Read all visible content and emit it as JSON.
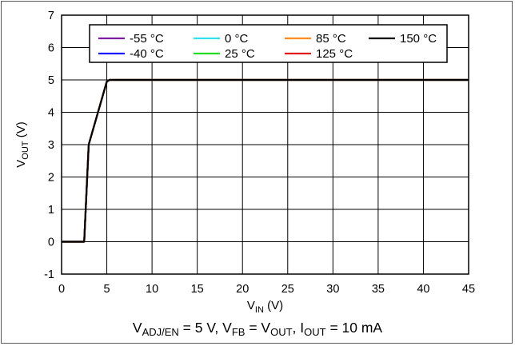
{
  "chart_data": {
    "type": "line",
    "xlabel": {
      "main": "V",
      "sub": "IN",
      "unit": " (V)"
    },
    "ylabel": {
      "main": "V",
      "sub": "OUT",
      "unit": " (V)"
    },
    "xlim": [
      0,
      45
    ],
    "ylim": [
      -1,
      7
    ],
    "xticks": [
      0,
      5,
      10,
      15,
      20,
      25,
      30,
      35,
      40,
      45
    ],
    "yticks": [
      -1,
      0,
      1,
      2,
      3,
      4,
      5,
      6,
      7
    ],
    "grid": true,
    "legend_position": "top",
    "series": [
      {
        "name": "-55 °C",
        "color": "#7b1fa2",
        "x": [
          0,
          2.5,
          3.0,
          5.0,
          5.3,
          45
        ],
        "y": [
          0,
          0,
          3.0,
          4.95,
          5.0,
          5.0
        ]
      },
      {
        "name": "-40 °C",
        "color": "#1a1aff",
        "x": [
          0,
          2.5,
          3.0,
          5.0,
          5.3,
          45
        ],
        "y": [
          0,
          0,
          3.0,
          4.95,
          5.0,
          5.0
        ]
      },
      {
        "name": "0 °C",
        "color": "#33e0f0",
        "x": [
          0,
          2.5,
          3.0,
          5.0,
          5.3,
          45
        ],
        "y": [
          0,
          0,
          3.0,
          4.95,
          5.0,
          5.0
        ]
      },
      {
        "name": "25 °C",
        "color": "#22dd22",
        "x": [
          0,
          2.5,
          3.0,
          5.0,
          5.3,
          45
        ],
        "y": [
          0,
          0,
          3.0,
          4.95,
          5.0,
          5.0
        ]
      },
      {
        "name": "85 °C",
        "color": "#ff8a1f",
        "x": [
          0,
          2.5,
          3.0,
          5.0,
          5.3,
          45
        ],
        "y": [
          0,
          0,
          3.0,
          4.95,
          5.0,
          5.0
        ]
      },
      {
        "name": "125 °C",
        "color": "#e01818",
        "x": [
          0,
          2.5,
          3.0,
          5.0,
          5.3,
          45
        ],
        "y": [
          0,
          0,
          3.0,
          4.95,
          5.0,
          5.0
        ]
      },
      {
        "name": "150 °C",
        "color": "#000000",
        "x": [
          0,
          2.5,
          3.0,
          5.0,
          5.3,
          45
        ],
        "y": [
          0,
          0,
          3.0,
          4.95,
          5.0,
          5.0
        ]
      }
    ],
    "conditions": {
      "parts": [
        {
          "t": "V"
        },
        {
          "t": "ADJ/EN",
          "sub": true
        },
        {
          "t": " = 5 V, V"
        },
        {
          "t": "FB",
          "sub": true
        },
        {
          "t": " = V"
        },
        {
          "t": "OUT",
          "sub": true
        },
        {
          "t": ", I"
        },
        {
          "t": "OUT",
          "sub": true
        },
        {
          "t": " = 10 mA"
        }
      ]
    }
  }
}
